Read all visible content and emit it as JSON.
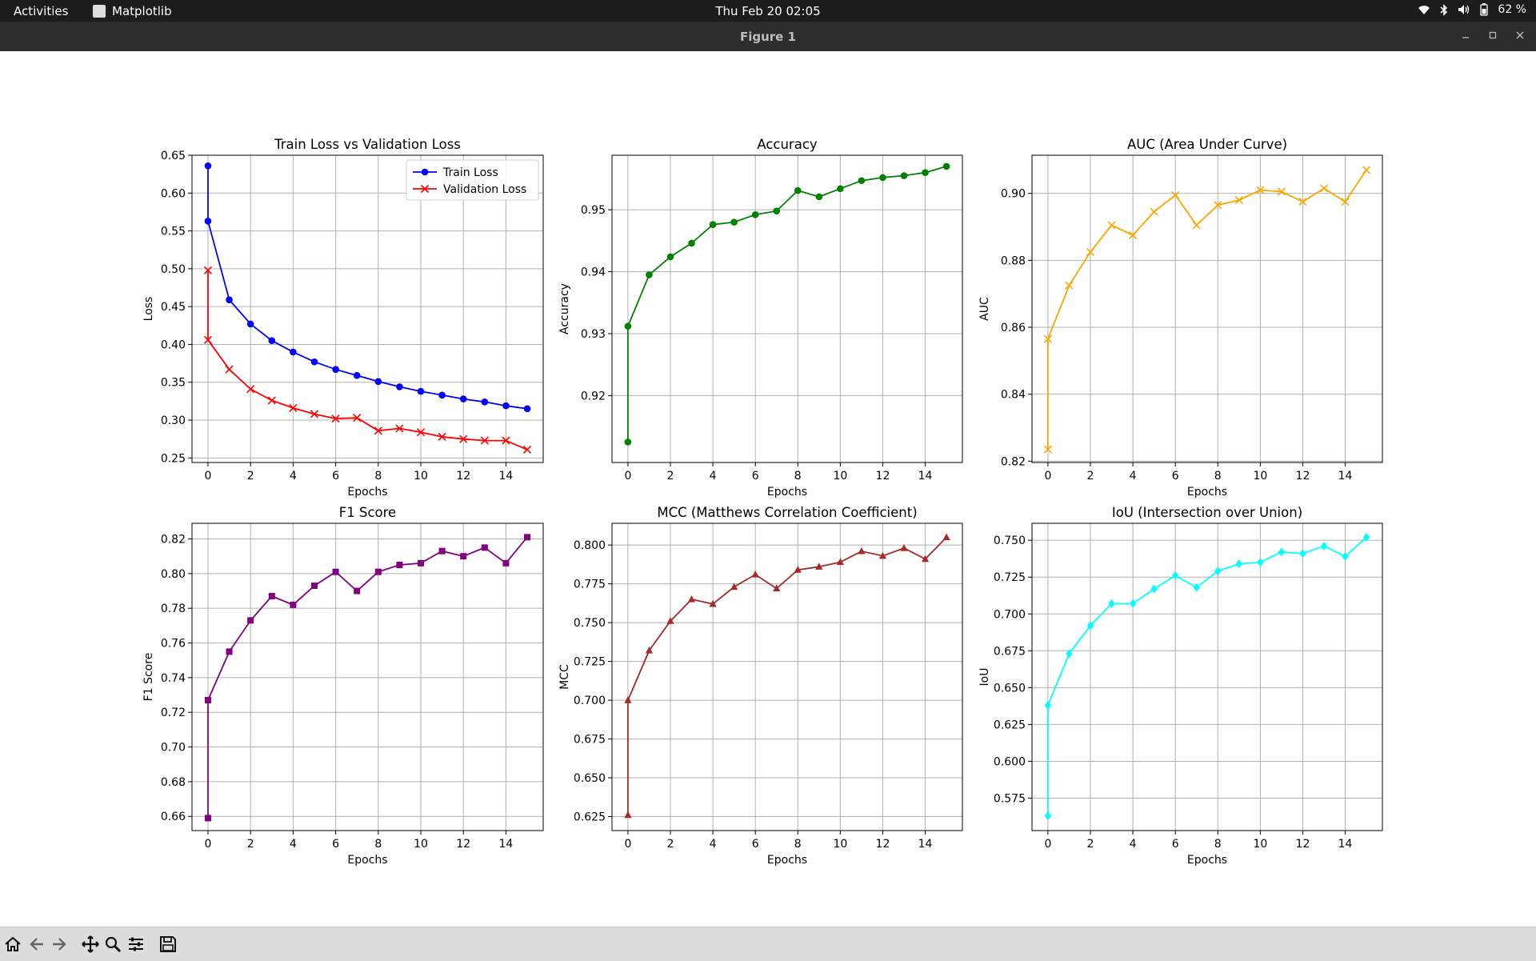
{
  "system": {
    "activities": "Activities",
    "app_name": "Matplotlib",
    "clock": "Thu Feb 20  02:05",
    "battery": "62 %"
  },
  "window": {
    "title": "Figure 1"
  },
  "toolbar": {
    "buttons": [
      "home-icon",
      "back-arrow-icon",
      "forward-arrow-icon",
      "pan-icon",
      "zoom-icon",
      "configure-icon",
      "save-icon"
    ]
  },
  "chart_data": [
    {
      "type": "line",
      "title": "Train Loss vs Validation Loss",
      "xlabel": "Epochs",
      "ylabel": "Loss",
      "xlim": [
        -0.75,
        15.75
      ],
      "ylim": [
        0.244,
        0.65
      ],
      "xticks": [
        0,
        2,
        4,
        6,
        8,
        10,
        12,
        14
      ],
      "yticks": [
        0.25,
        0.3,
        0.35,
        0.4,
        0.45,
        0.5,
        0.55,
        0.6,
        0.65
      ],
      "ytick_labels": [
        "0.25",
        "0.30",
        "0.35",
        "0.40",
        "0.45",
        "0.50",
        "0.55",
        "0.60",
        "0.65"
      ],
      "grid": true,
      "legend": "top-right",
      "series": [
        {
          "name": "Train Loss",
          "color": "#0000ff",
          "marker": "circle",
          "x": [
            0,
            0,
            1,
            2,
            3,
            4,
            5,
            6,
            7,
            8,
            9,
            10,
            11,
            12,
            13,
            14,
            15
          ],
          "y": [
            0.636,
            0.563,
            0.459,
            0.427,
            0.405,
            0.39,
            0.377,
            0.367,
            0.359,
            0.351,
            0.344,
            0.338,
            0.333,
            0.328,
            0.324,
            0.319,
            0.315
          ]
        },
        {
          "name": "Validation Loss",
          "color": "#ff0000",
          "marker": "x",
          "x": [
            0,
            0,
            1,
            2,
            3,
            4,
            5,
            6,
            7,
            8,
            9,
            10,
            11,
            12,
            13,
            14,
            15
          ],
          "y": [
            0.498,
            0.406,
            0.367,
            0.341,
            0.326,
            0.316,
            0.308,
            0.302,
            0.303,
            0.286,
            0.289,
            0.284,
            0.278,
            0.275,
            0.273,
            0.273,
            0.261
          ]
        }
      ]
    },
    {
      "type": "line",
      "title": "Accuracy",
      "xlabel": "Epochs",
      "ylabel": "Accuracy",
      "xlim": [
        -0.75,
        15.75
      ],
      "ylim": [
        0.9092,
        0.9588
      ],
      "xticks": [
        0,
        2,
        4,
        6,
        8,
        10,
        12,
        14
      ],
      "yticks": [
        0.92,
        0.93,
        0.94,
        0.95
      ],
      "ytick_labels": [
        "0.92",
        "0.93",
        "0.94",
        "0.95"
      ],
      "grid": true,
      "series": [
        {
          "color": "#008000",
          "marker": "circle",
          "x": [
            0,
            0,
            1,
            2,
            3,
            4,
            5,
            6,
            7,
            8,
            9,
            10,
            11,
            12,
            13,
            14,
            15
          ],
          "y": [
            0.9125,
            0.9312,
            0.9395,
            0.9424,
            0.9446,
            0.9476,
            0.948,
            0.9492,
            0.9498,
            0.9531,
            0.9521,
            0.9534,
            0.9547,
            0.9552,
            0.9555,
            0.956,
            0.957
          ]
        }
      ]
    },
    {
      "type": "line",
      "title": "AUC (Area Under Curve)",
      "xlabel": "Epochs",
      "ylabel": "AUC",
      "xlim": [
        -0.75,
        15.75
      ],
      "ylim": [
        0.8196,
        0.9114
      ],
      "xticks": [
        0,
        2,
        4,
        6,
        8,
        10,
        12,
        14
      ],
      "yticks": [
        0.82,
        0.84,
        0.86,
        0.88,
        0.9
      ],
      "ytick_labels": [
        "0.82",
        "0.84",
        "0.86",
        "0.88",
        "0.90"
      ],
      "grid": true,
      "series": [
        {
          "color": "#ffa500",
          "marker": "x",
          "x": [
            0,
            0,
            1,
            2,
            3,
            4,
            5,
            6,
            7,
            8,
            9,
            10,
            11,
            12,
            13,
            14,
            15
          ],
          "y": [
            0.8235,
            0.8565,
            0.8725,
            0.8825,
            0.8905,
            0.8875,
            0.8945,
            0.8995,
            0.8905,
            0.8965,
            0.898,
            0.901,
            0.9005,
            0.8975,
            0.9015,
            0.8975,
            0.907
          ]
        }
      ]
    },
    {
      "type": "line",
      "title": "F1 Score",
      "xlabel": "Epochs",
      "ylabel": "F1 Score",
      "xlim": [
        -0.75,
        15.75
      ],
      "ylim": [
        0.6518,
        0.829
      ],
      "xticks": [
        0,
        2,
        4,
        6,
        8,
        10,
        12,
        14
      ],
      "yticks": [
        0.66,
        0.68,
        0.7,
        0.72,
        0.74,
        0.76,
        0.78,
        0.8,
        0.82
      ],
      "ytick_labels": [
        "0.66",
        "0.68",
        "0.70",
        "0.72",
        "0.74",
        "0.76",
        "0.78",
        "0.80",
        "0.82"
      ],
      "grid": true,
      "series": [
        {
          "color": "#800080",
          "marker": "square",
          "x": [
            0,
            0,
            1,
            2,
            3,
            4,
            5,
            6,
            7,
            8,
            9,
            10,
            11,
            12,
            13,
            14,
            15
          ],
          "y": [
            0.659,
            0.727,
            0.755,
            0.773,
            0.787,
            0.782,
            0.793,
            0.801,
            0.79,
            0.801,
            0.805,
            0.806,
            0.813,
            0.81,
            0.815,
            0.806,
            0.821
          ]
        }
      ]
    },
    {
      "type": "line",
      "title": "MCC (Matthews Correlation Coefficient)",
      "xlabel": "Epochs",
      "ylabel": "MCC",
      "xlim": [
        -0.75,
        15.75
      ],
      "ylim": [
        0.616,
        0.814
      ],
      "xticks": [
        0,
        2,
        4,
        6,
        8,
        10,
        12,
        14
      ],
      "yticks": [
        0.625,
        0.65,
        0.675,
        0.7,
        0.725,
        0.75,
        0.775,
        0.8
      ],
      "ytick_labels": [
        "0.625",
        "0.650",
        "0.675",
        "0.700",
        "0.725",
        "0.750",
        "0.775",
        "0.800"
      ],
      "grid": true,
      "series": [
        {
          "color": "#a52a2a",
          "marker": "triangle",
          "x": [
            0,
            0,
            1,
            2,
            3,
            4,
            5,
            6,
            7,
            8,
            9,
            10,
            11,
            12,
            13,
            14,
            15
          ],
          "y": [
            0.626,
            0.7,
            0.732,
            0.751,
            0.765,
            0.762,
            0.773,
            0.781,
            0.772,
            0.784,
            0.786,
            0.789,
            0.796,
            0.793,
            0.798,
            0.791,
            0.805
          ]
        }
      ]
    },
    {
      "type": "line",
      "title": "IoU (Intersection over Union)",
      "xlabel": "Epochs",
      "ylabel": "IoU",
      "xlim": [
        -0.75,
        15.75
      ],
      "ylim": [
        0.553,
        0.7615
      ],
      "xticks": [
        0,
        2,
        4,
        6,
        8,
        10,
        12,
        14
      ],
      "yticks": [
        0.575,
        0.6,
        0.625,
        0.65,
        0.675,
        0.7,
        0.725,
        0.75
      ],
      "ytick_labels": [
        "0.575",
        "0.600",
        "0.625",
        "0.650",
        "0.675",
        "0.700",
        "0.725",
        "0.750"
      ],
      "grid": true,
      "series": [
        {
          "color": "#00ffff",
          "marker": "diamond",
          "x": [
            0,
            0,
            1,
            2,
            3,
            4,
            5,
            6,
            7,
            8,
            9,
            10,
            11,
            12,
            13,
            14,
            15
          ],
          "y": [
            0.563,
            0.638,
            0.673,
            0.692,
            0.707,
            0.707,
            0.717,
            0.726,
            0.718,
            0.729,
            0.734,
            0.735,
            0.742,
            0.741,
            0.746,
            0.739,
            0.752
          ]
        }
      ]
    }
  ]
}
